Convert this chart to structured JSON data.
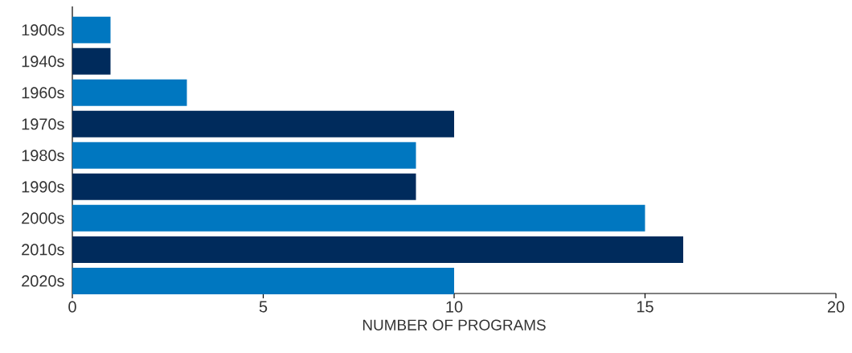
{
  "chart_data": {
    "type": "bar",
    "orientation": "horizontal",
    "xlabel": "NUMBER OF PROGRAMS",
    "categories": [
      "1900s",
      "1940s",
      "1960s",
      "1970s",
      "1980s",
      "1990s",
      "2000s",
      "2010s",
      "2020s"
    ],
    "values": [
      1,
      1,
      3,
      10,
      9,
      9,
      15,
      16,
      10
    ],
    "colors": [
      "#0077c0",
      "#002b5c",
      "#0077c0",
      "#002b5c",
      "#0077c0",
      "#002b5c",
      "#0077c0",
      "#002b5c",
      "#0077c0"
    ],
    "xlim": [
      0,
      20
    ],
    "xticks": [
      0,
      5,
      10,
      15,
      20
    ],
    "grid": false
  }
}
